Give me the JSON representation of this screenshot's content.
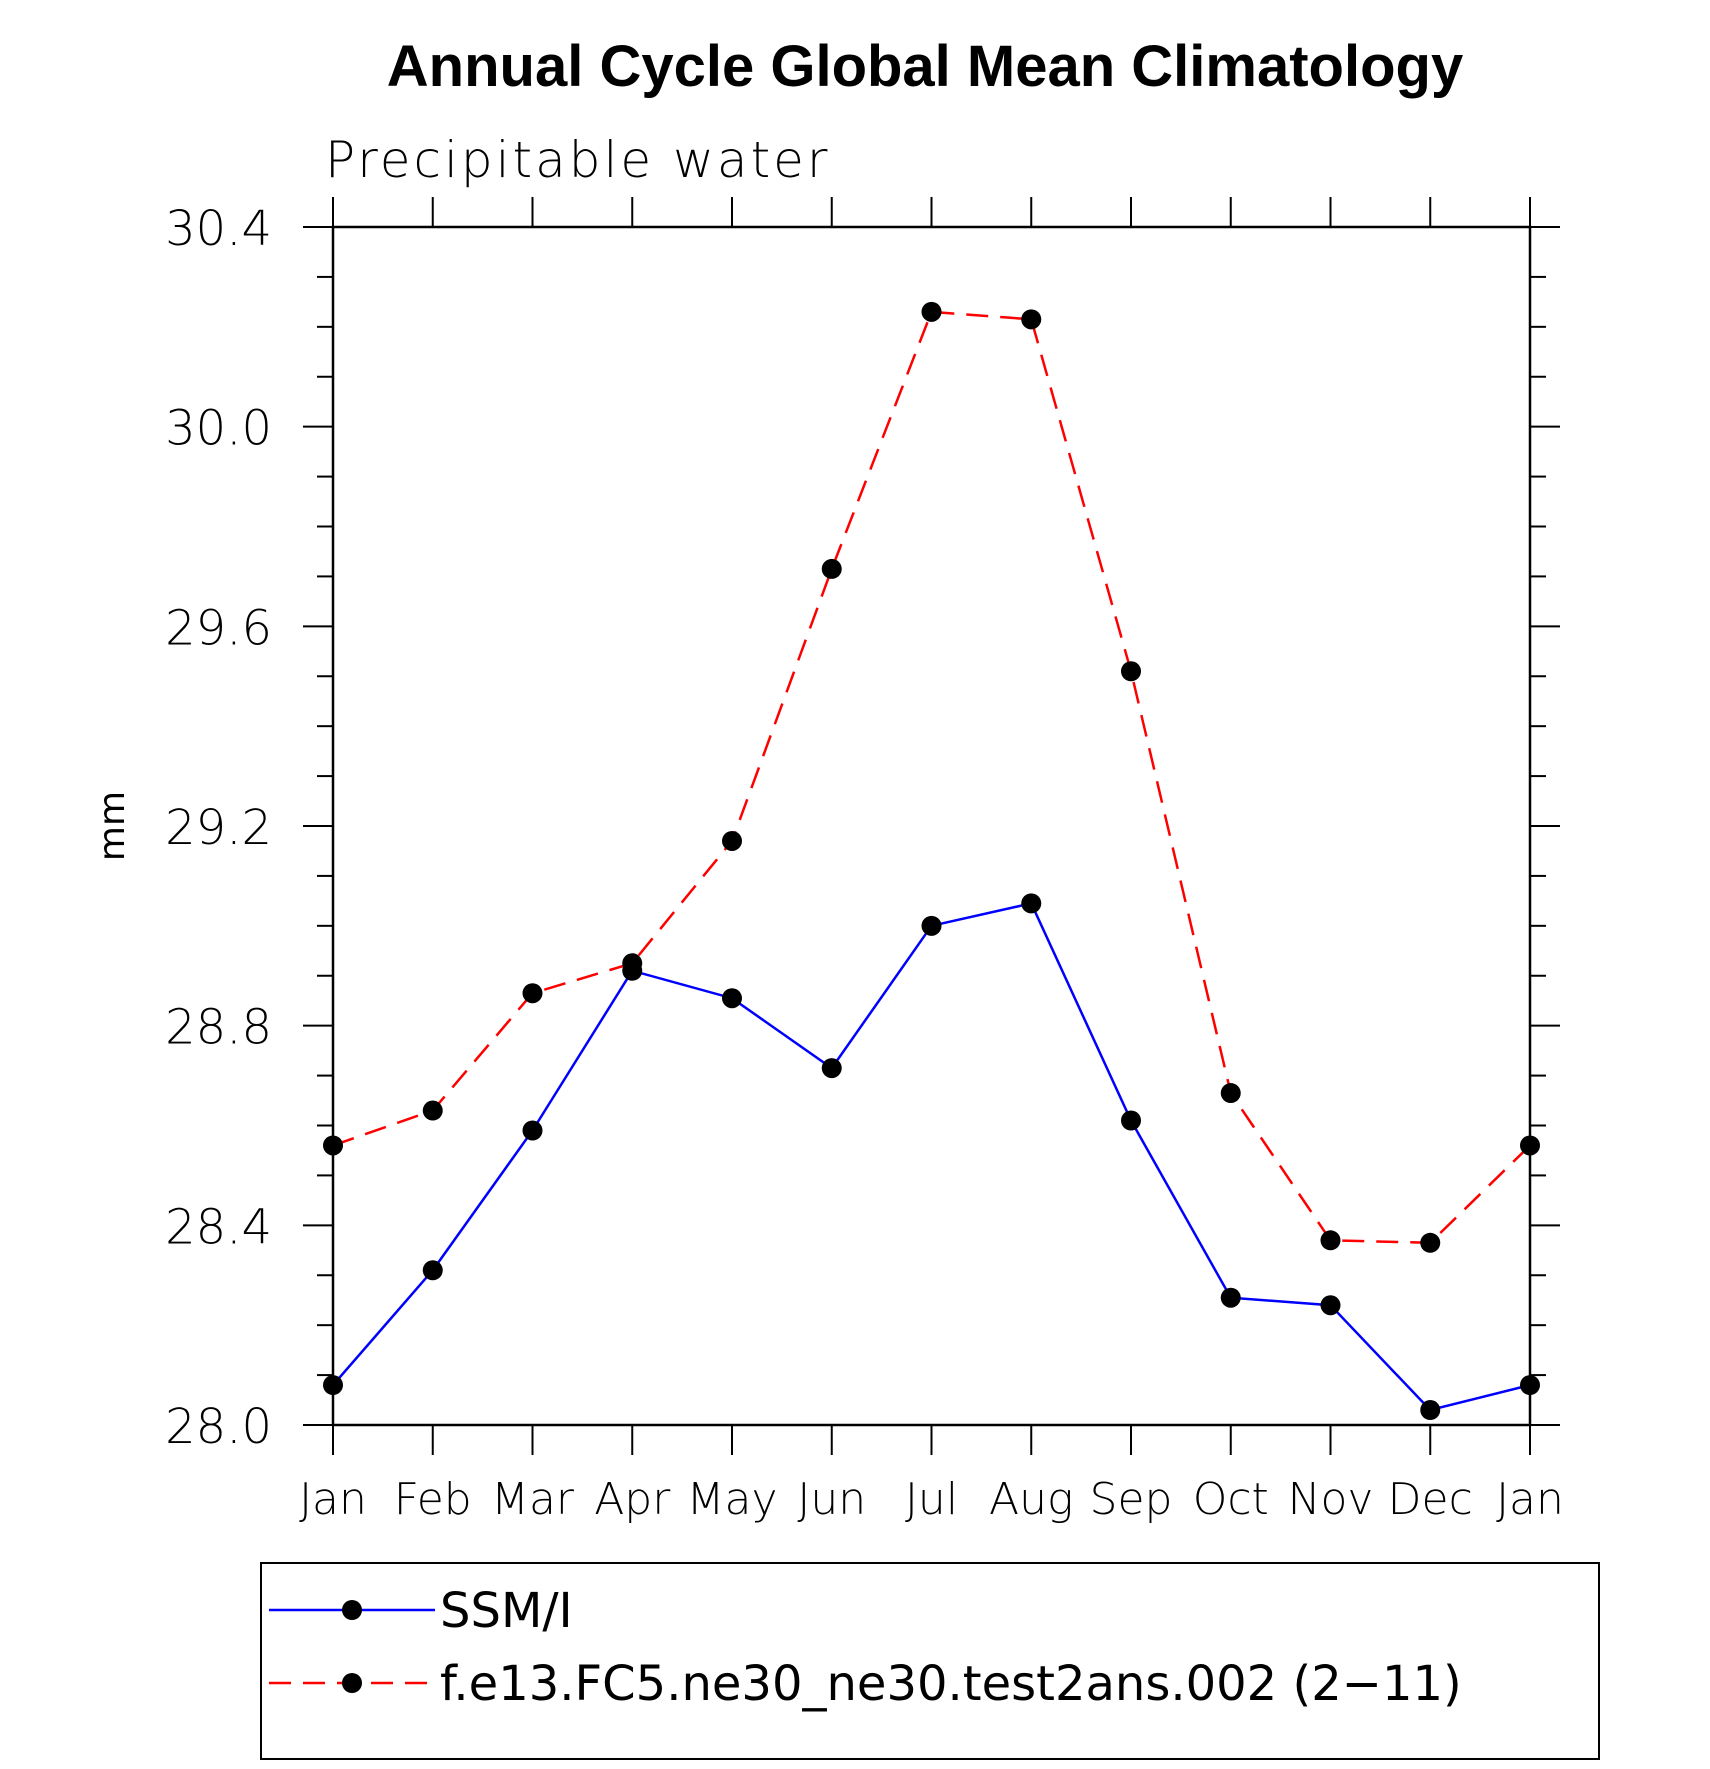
{
  "chart_data": {
    "type": "line",
    "title": "Annual Cycle Global Mean Climatology",
    "subtitle": "Precipitable water",
    "ylabel": "mm",
    "xlabel": "",
    "categories": [
      "Jan",
      "Feb",
      "Mar",
      "Apr",
      "May",
      "Jun",
      "Jul",
      "Aug",
      "Sep",
      "Oct",
      "Nov",
      "Dec",
      "Jan"
    ],
    "ylim": [
      28.0,
      30.4
    ],
    "yticks": [
      28.0,
      28.4,
      28.8,
      29.2,
      29.6,
      30.0,
      30.4
    ],
    "ytick_labels": [
      "28.0",
      "28.4",
      "28.8",
      "29.2",
      "29.6",
      "30.0",
      "30.4"
    ],
    "minor_ytick_step": 0.1,
    "series": [
      {
        "name": "SSM/I",
        "color": "#0000ff",
        "dash": "solid",
        "values": [
          28.08,
          28.31,
          28.59,
          28.91,
          28.855,
          28.715,
          29.0,
          29.045,
          28.61,
          28.255,
          28.24,
          28.03,
          28.08
        ]
      },
      {
        "name": "f.e13.FC5.ne30_ne30.test2ans.002 (2−11)",
        "color": "#ff0000",
        "dash": "dashed",
        "values": [
          28.56,
          28.63,
          28.865,
          28.925,
          29.17,
          29.715,
          30.23,
          30.215,
          29.51,
          28.665,
          28.37,
          28.365,
          28.56
        ]
      }
    ],
    "marker_color": "#000000",
    "legend_position": "bottom"
  }
}
